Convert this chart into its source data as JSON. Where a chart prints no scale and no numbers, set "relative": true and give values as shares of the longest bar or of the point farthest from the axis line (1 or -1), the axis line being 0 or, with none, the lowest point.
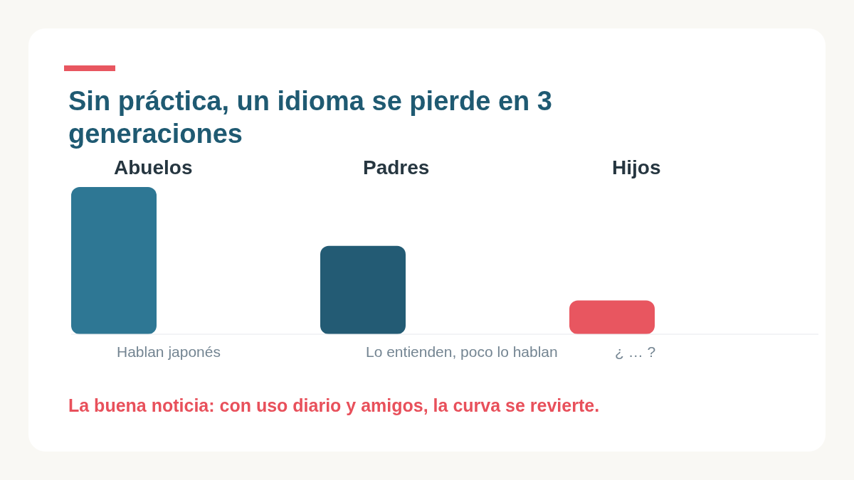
{
  "chart_data": {
    "type": "bar",
    "title": "Sin práctica, un idioma se pierde en 3 generaciones",
    "categories": [
      "Abuelos",
      "Padres",
      "Hijos"
    ],
    "values": [
      1,
      0.6,
      0.23
    ],
    "colors": [
      "#2e7794",
      "#235b74",
      "#e85660"
    ],
    "relative": true,
    "annotations": [
      "Hablan japonés",
      "Lo entienden, poco lo hablan",
      "¿ … ?",
      "La buena noticia: con uso diario y amigos, la curva se revierte."
    ]
  }
}
